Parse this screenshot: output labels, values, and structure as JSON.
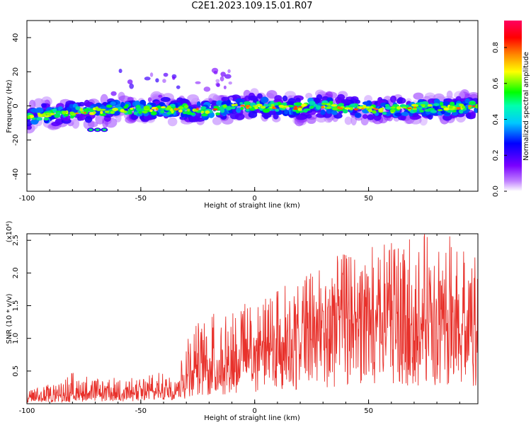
{
  "title": "C2E1.2023.109.15.01.R07",
  "colors": {
    "snr_line": "#e8312b",
    "colormap": [
      "#ffffff",
      "#7a00ff",
      "#0000ff",
      "#00c8ff",
      "#00ff00",
      "#ffff00",
      "#ff8800",
      "#ff0000",
      "#ff0060"
    ]
  },
  "chart_data": [
    {
      "type": "heatmap",
      "xlabel": "Height of straight line (km)",
      "ylabel": "Frequency (Hz)",
      "xlim": [
        -100,
        98
      ],
      "ylim": [
        -50,
        50
      ],
      "xticks": [
        -100,
        -50,
        0,
        50
      ],
      "yticks": [
        -40,
        -20,
        0,
        20,
        40
      ],
      "colorbar": {
        "label": "Normalized spectral amplitude",
        "range": [
          0,
          0.95
        ],
        "ticks": [
          0.0,
          0.2,
          0.4,
          0.6,
          0.8
        ]
      },
      "center_frequency_trace": {
        "x": [
          -100,
          -90,
          -80,
          -70,
          -60,
          -50,
          -40,
          -30,
          -20,
          -10,
          0,
          10,
          20,
          30,
          40,
          50,
          60,
          70,
          80,
          90,
          98
        ],
        "y": [
          -7,
          -5,
          -4,
          -3,
          -2,
          -2,
          -2,
          -2,
          -3,
          -1,
          0,
          -1,
          -1,
          0,
          -1,
          -2,
          -2,
          -1,
          -1,
          -1,
          0
        ]
      }
    },
    {
      "type": "line",
      "xlabel": "Height of straight line (km)",
      "ylabel": "SNR (10 * v/v)",
      "y_exponent_label": "(x10⁴)",
      "xlim": [
        -100,
        98
      ],
      "ylim": [
        0,
        2.6
      ],
      "xticks": [
        -100,
        -50,
        0,
        50
      ],
      "yticks": [
        0.5,
        1.0,
        1.5,
        2.0,
        2.5
      ],
      "envelope": {
        "x": [
          -100,
          -90,
          -80,
          -70,
          -60,
          -50,
          -40,
          -32,
          -28,
          -20,
          -10,
          0,
          10,
          20,
          30,
          40,
          50,
          60,
          70,
          80,
          90,
          98
        ],
        "mean": [
          0.08,
          0.12,
          0.15,
          0.16,
          0.17,
          0.18,
          0.2,
          0.3,
          0.55,
          0.6,
          0.7,
          0.85,
          1.0,
          1.1,
          1.2,
          1.3,
          1.3,
          1.3,
          1.2,
          1.2,
          1.15,
          1.1
        ],
        "max": [
          0.2,
          0.3,
          0.5,
          0.4,
          0.4,
          0.4,
          0.5,
          0.7,
          1.2,
          1.4,
          1.6,
          1.5,
          1.8,
          1.9,
          2.2,
          2.3,
          2.4,
          2.5,
          2.6,
          2.6,
          2.6,
          2.6
        ]
      }
    }
  ]
}
